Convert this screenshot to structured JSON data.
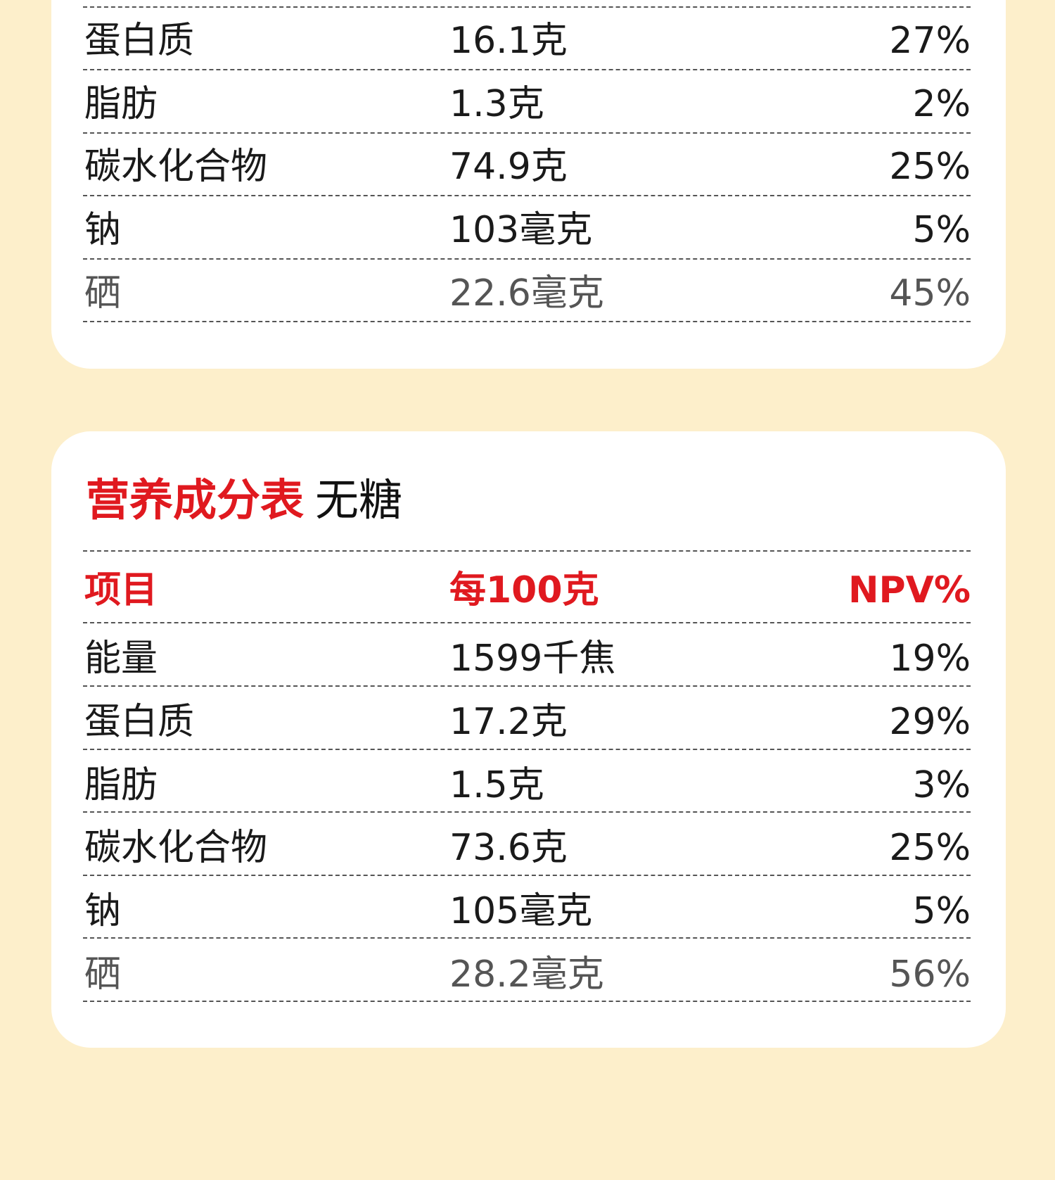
{
  "tables": [
    {
      "rows": [
        [
          "蛋白质",
          "16.1克",
          "27%"
        ],
        [
          "脂肪",
          "1.3克",
          "2%"
        ],
        [
          "碳水化合物",
          "74.9克",
          "25%"
        ],
        [
          "钠",
          "103毫克",
          "5%"
        ],
        [
          "硒",
          "22.6毫克",
          "45%"
        ]
      ]
    },
    {
      "title": "营养成分表",
      "subtitle": "无糖",
      "header": [
        "项目",
        "每100克",
        "NPV%"
      ],
      "rows": [
        [
          "能量",
          "1599千焦",
          "19%"
        ],
        [
          "蛋白质",
          "17.2克",
          "29%"
        ],
        [
          "脂肪",
          "1.5克",
          "3%"
        ],
        [
          "碳水化合物",
          "73.6克",
          "25%"
        ],
        [
          "钠",
          "105毫克",
          "5%"
        ],
        [
          "硒",
          "28.2毫克",
          "56%"
        ]
      ]
    }
  ]
}
